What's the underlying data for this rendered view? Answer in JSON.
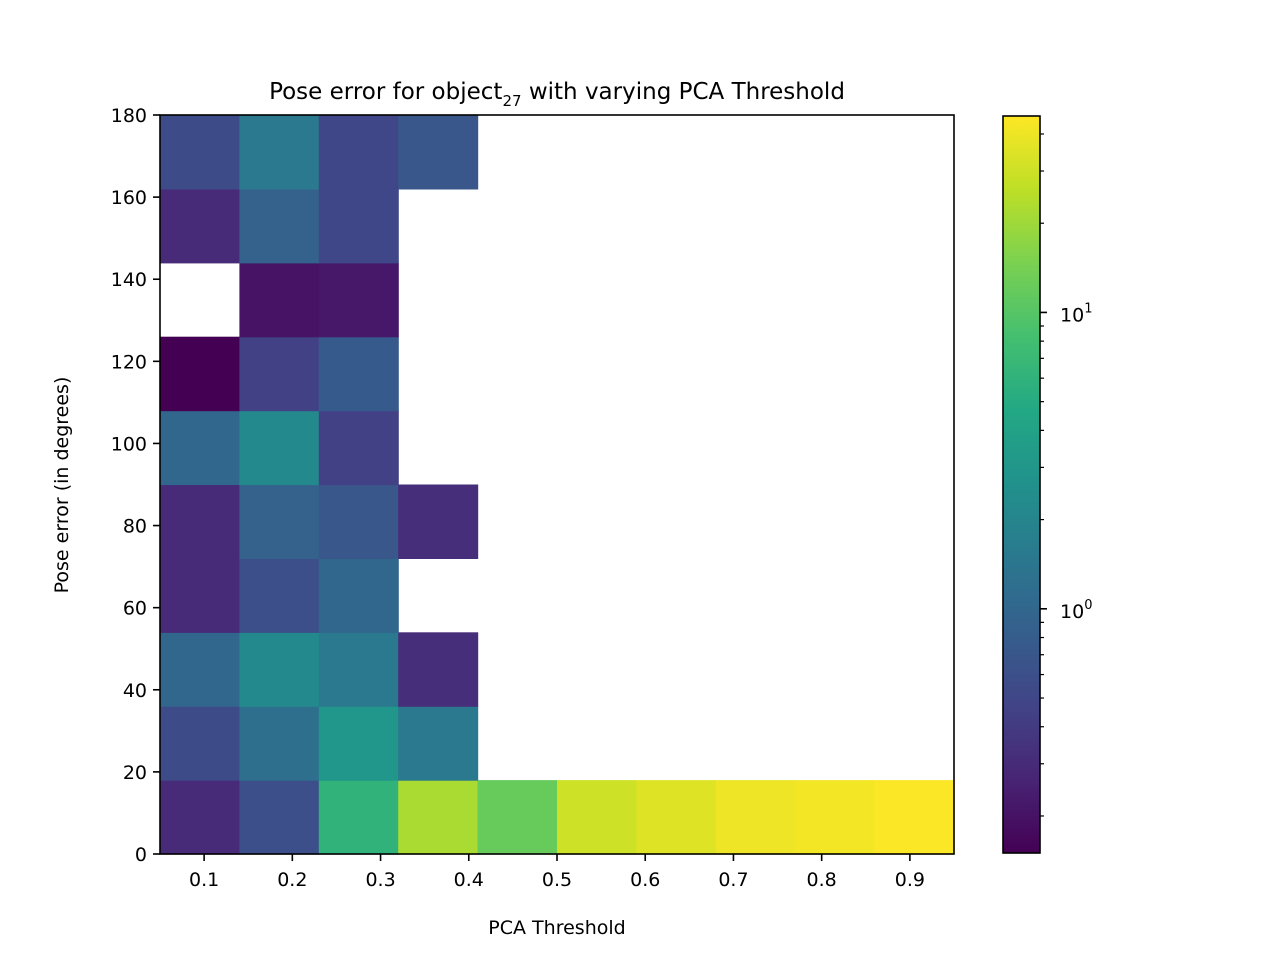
{
  "chart_data": {
    "type": "heatmap",
    "title": {
      "prefix": "Pose error for object",
      "subscript": "27",
      "suffix": " with varying PCA Threshold"
    },
    "xlabel": "PCA Threshold",
    "ylabel": "Pose error (in degrees)",
    "xlim": [
      0.05,
      0.95
    ],
    "ylim": [
      0,
      180
    ],
    "x_ticks": [
      "0.1",
      "0.2",
      "0.3",
      "0.4",
      "0.5",
      "0.6",
      "0.7",
      "0.8",
      "0.9"
    ],
    "y_ticks": [
      "0",
      "20",
      "40",
      "60",
      "80",
      "100",
      "120",
      "140",
      "160",
      "180"
    ],
    "x_bin_edges": [
      0.05,
      0.14,
      0.23,
      0.32,
      0.41,
      0.5,
      0.59,
      0.68,
      0.77,
      0.86,
      0.95
    ],
    "y_bin_edges": [
      0,
      18,
      36,
      54,
      72,
      90,
      108,
      126,
      144,
      162,
      180
    ],
    "values_note": "values[row][col]; row 0 = lowest y bin (0-18 deg); null = empty bin",
    "values": [
      [
        0.3,
        0.6,
        6,
        22,
        12,
        30,
        35,
        40,
        42,
        45
      ],
      [
        0.55,
        1.2,
        3,
        1.5,
        null,
        null,
        null,
        null,
        null,
        null
      ],
      [
        1.0,
        2.2,
        1.5,
        0.32,
        null,
        null,
        null,
        null,
        null,
        null
      ],
      [
        0.3,
        0.6,
        1.0,
        null,
        null,
        null,
        null,
        null,
        null,
        null
      ],
      [
        0.3,
        0.9,
        0.7,
        0.32,
        null,
        null,
        null,
        null,
        null,
        null
      ],
      [
        1.0,
        2.2,
        0.45,
        null,
        null,
        null,
        null,
        null,
        null,
        null
      ],
      [
        0.15,
        0.45,
        0.75,
        null,
        null,
        null,
        null,
        null,
        null,
        null
      ],
      [
        null,
        0.2,
        0.22,
        null,
        null,
        null,
        null,
        null,
        null,
        null
      ],
      [
        0.3,
        0.9,
        0.5,
        null,
        null,
        null,
        null,
        null,
        null,
        null
      ],
      [
        0.55,
        1.5,
        0.5,
        0.7,
        null,
        null,
        null,
        null,
        null,
        null
      ]
    ],
    "colorbar": {
      "scale": "log",
      "colormap": "viridis",
      "vmin": 0.15,
      "vmax": 46,
      "major_ticks": [
        {
          "value": 1,
          "base": "10",
          "exp": "0"
        },
        {
          "value": 10,
          "base": "10",
          "exp": "1"
        }
      ]
    }
  }
}
